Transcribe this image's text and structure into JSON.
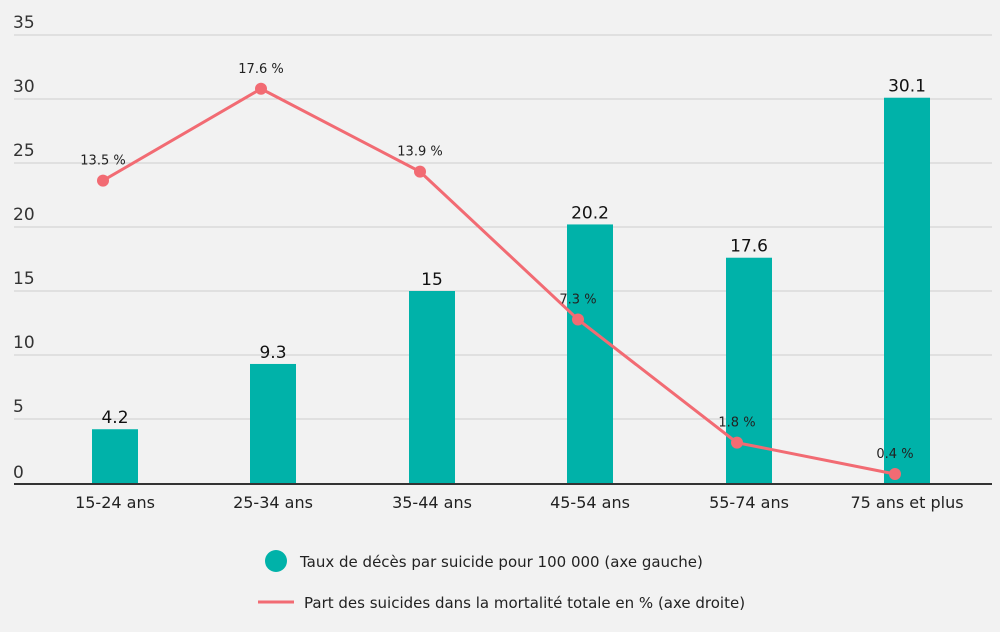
{
  "chart_data": {
    "type": "bar",
    "categories": [
      "15-24 ans",
      "25-34 ans",
      "35-44 ans",
      "45-54 ans",
      "55-74 ans",
      "75 ans et plus"
    ],
    "ylim": [
      0,
      35
    ],
    "yticks": [
      "0",
      "5",
      "10",
      "15",
      "20",
      "25",
      "30",
      "35"
    ],
    "grid": true,
    "legend_position": "bottom",
    "series": [
      {
        "name": "Taux de décès par suicide pour 100 000 (axe gauche)",
        "type": "bar",
        "axis": "left",
        "color": "#00b2a9",
        "values": [
          4.2,
          9.3,
          15,
          20.2,
          17.6,
          30.1
        ],
        "labels": [
          "4.2",
          "9.3",
          "15",
          "20.2",
          "17.6",
          "30.1"
        ]
      },
      {
        "name": "Part des suicides dans la mortalité totale en % (axe droite)",
        "type": "line",
        "axis": "right",
        "color": "#f26b73",
        "values": [
          13.5,
          17.6,
          13.9,
          7.3,
          1.8,
          0.4
        ],
        "labels": [
          "13.5 %",
          "17.6 %",
          "13.9 %",
          "7.3 %",
          "1.8 %",
          "0.4 %"
        ]
      }
    ]
  }
}
